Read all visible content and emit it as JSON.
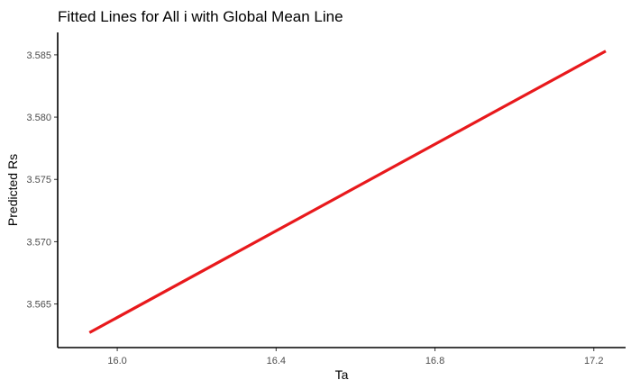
{
  "chart_data": {
    "type": "line",
    "title": "Fitted Lines for All i with Global Mean Line",
    "xlabel": "Ta",
    "ylabel": "Predicted Rs",
    "xlim": [
      15.85,
      17.28
    ],
    "ylim": [
      3.5615,
      3.5868
    ],
    "x_ticks": [
      16.0,
      16.4,
      16.8,
      17.2
    ],
    "x_tick_labels": [
      "16.0",
      "16.4",
      "16.8",
      "17.2"
    ],
    "y_ticks": [
      3.565,
      3.57,
      3.575,
      3.58,
      3.585
    ],
    "y_tick_labels": [
      "3.565",
      "3.570",
      "3.575",
      "3.580",
      "3.585"
    ],
    "grid": false,
    "series": [
      {
        "color": "#e8191c",
        "x": [
          15.93,
          17.23
        ],
        "y": [
          3.5627,
          3.5853
        ]
      }
    ]
  }
}
